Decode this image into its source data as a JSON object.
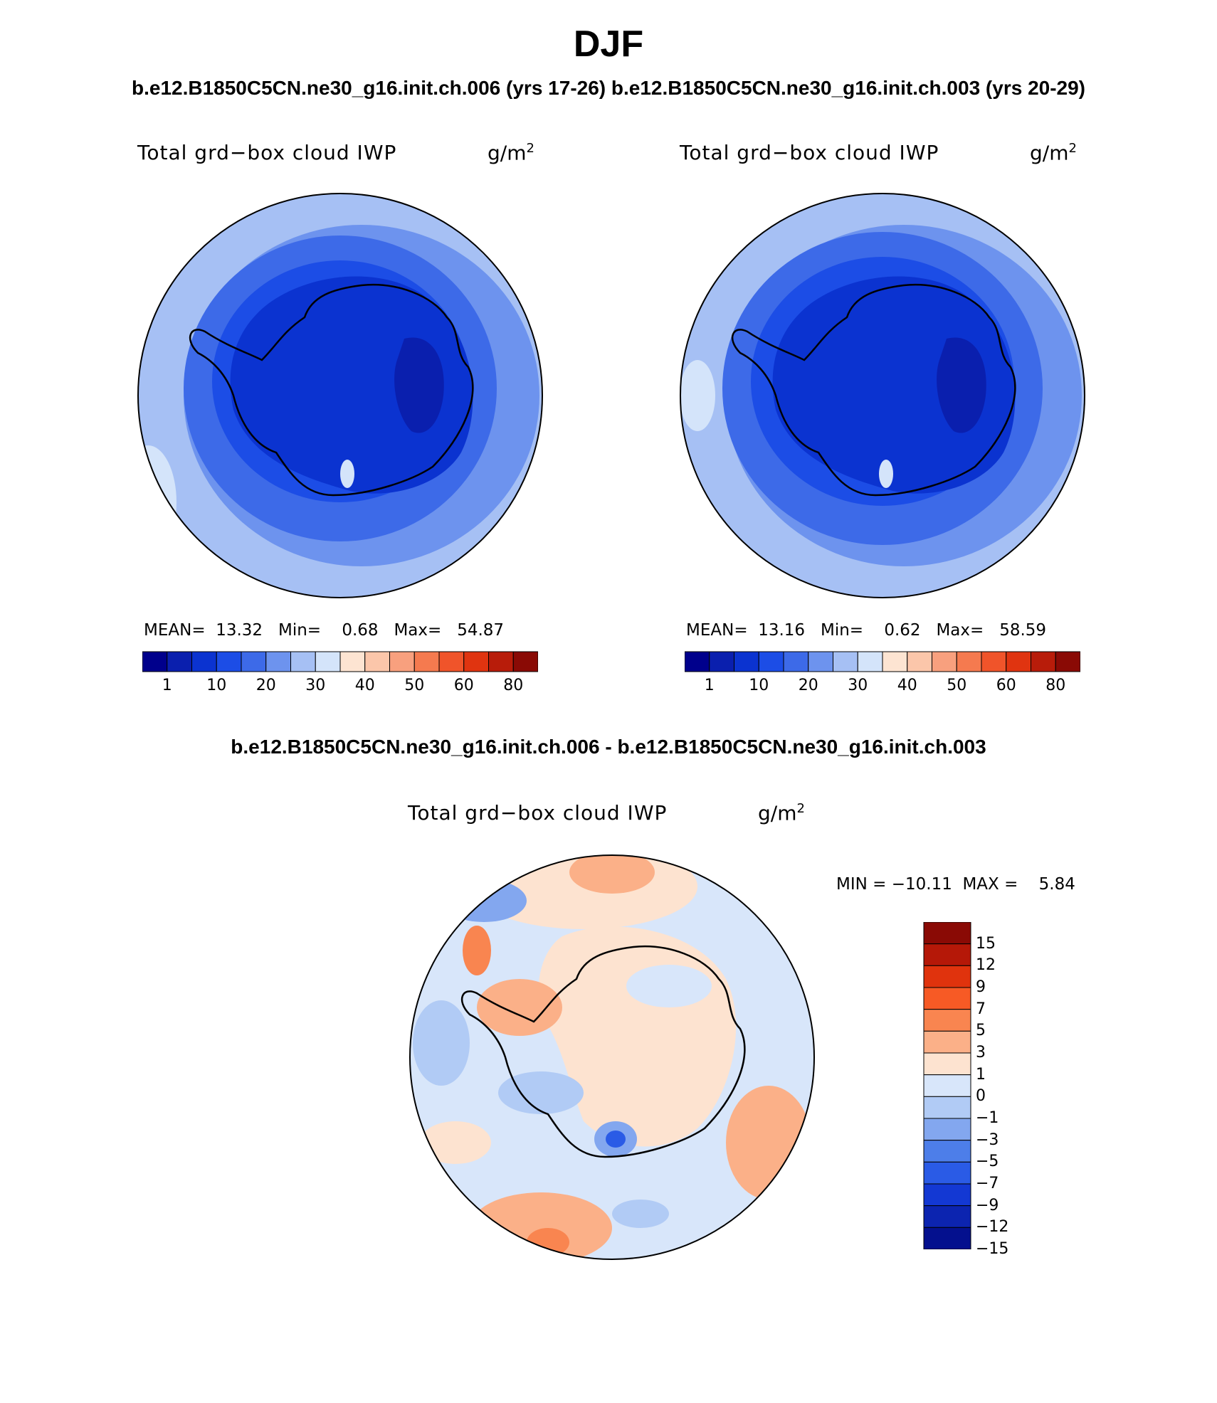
{
  "main_title": "DJF",
  "run_titles": "b.e12.B1850C5CN.ne30_g16.init.ch.006 (yrs 17-26) b.e12.B1850C5CN.ne30_g16.init.ch.003 (yrs 20-29)",
  "diff_title": "b.e12.B1850C5CN.ne30_g16.init.ch.006 - b.e12.B1850C5CN.ne30_g16.init.ch.003",
  "panels": [
    {
      "variable": "Total grd−box cloud IWP",
      "units": "g/m",
      "units_exp": "2",
      "stats": "MEAN=  13.32   Min=    0.68   Max=   54.87"
    },
    {
      "variable": "Total grd−box cloud IWP",
      "units": "g/m",
      "units_exp": "2",
      "stats": "MEAN=  13.16   Min=    0.62   Max=   58.59"
    }
  ],
  "diff_panel": {
    "variable": "Total grd−box cloud IWP",
    "units": "g/m",
    "units_exp": "2",
    "stats": "MIN = −10.11  MAX =    5.84"
  },
  "colorbar_main": {
    "colors": [
      "#00008c",
      "#0a1fae",
      "#0b33d0",
      "#1c4de6",
      "#3d6ae8",
      "#6d93ee",
      "#a6c0f4",
      "#d4e4fa",
      "#fde4d2",
      "#fbc6aa",
      "#f8a07e",
      "#f57a4f",
      "#f0542a",
      "#e03410",
      "#b81c0a",
      "#8a0a05"
    ],
    "ticks": [
      "1",
      "10",
      "20",
      "30",
      "40",
      "50",
      "60",
      "80"
    ]
  },
  "colorbar_diff": {
    "colors": [
      "#8a0a05",
      "#b51808",
      "#e0330d",
      "#f75a25",
      "#f98550",
      "#fbb088",
      "#fde3d0",
      "#d8e6fa",
      "#b1cbf5",
      "#83a7ef",
      "#4d7ee9",
      "#2a5be6",
      "#1338d3",
      "#0c24b0",
      "#04108e"
    ],
    "ticks": [
      "15",
      "12",
      "9",
      "7",
      "5",
      "3",
      "1",
      "0",
      "−1",
      "−3",
      "−5",
      "−7",
      "−9",
      "−12",
      "−15"
    ]
  }
}
